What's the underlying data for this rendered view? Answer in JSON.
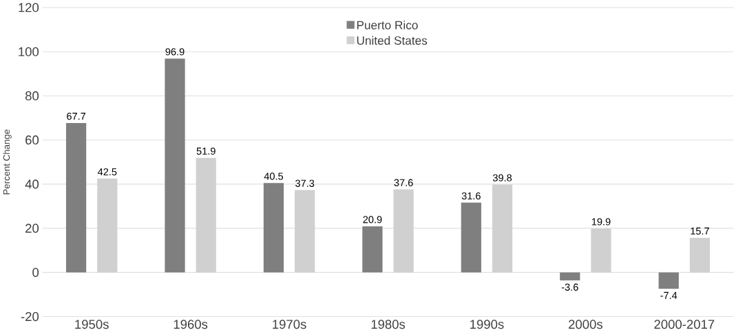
{
  "chart_data": {
    "type": "bar",
    "ylabel": "Percent Change",
    "categories": [
      "1950s",
      "1960s",
      "1970s",
      "1980s",
      "1990s",
      "2000s",
      "2000-2017"
    ],
    "series": [
      {
        "name": "Puerto Rico",
        "color": "#7f7f7f",
        "values": [
          67.7,
          96.9,
          40.5,
          20.9,
          31.6,
          -3.6,
          -7.4
        ]
      },
      {
        "name": "United States",
        "color": "#d0d0d0",
        "values": [
          42.5,
          51.9,
          37.3,
          37.6,
          39.8,
          19.9,
          15.7
        ]
      }
    ],
    "ylim": [
      -20,
      120
    ],
    "yticks": [
      -20,
      0,
      20,
      40,
      60,
      80,
      100,
      120
    ],
    "grid": "y",
    "legend": "top",
    "data_labels": true
  }
}
